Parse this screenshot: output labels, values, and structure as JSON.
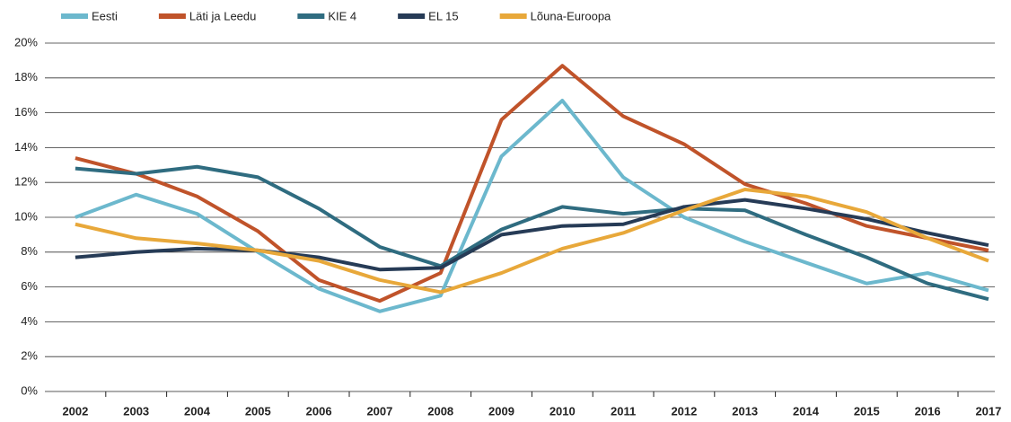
{
  "chart_data": {
    "type": "line",
    "categories": [
      "2002",
      "2003",
      "2004",
      "2005",
      "2006",
      "2007",
      "2008",
      "2009",
      "2010",
      "2011",
      "2012",
      "2013",
      "2014",
      "2015",
      "2016",
      "2017"
    ],
    "series": [
      {
        "name": "Eesti",
        "color": "#6cb8cd",
        "values": [
          10.0,
          11.3,
          10.2,
          8.0,
          5.9,
          4.6,
          5.5,
          13.5,
          16.7,
          12.3,
          10.0,
          8.6,
          7.4,
          6.2,
          6.8,
          5.8
        ]
      },
      {
        "name": "Läti ja Leedu",
        "color": "#c0532a",
        "values": [
          13.4,
          12.5,
          11.2,
          9.2,
          6.4,
          5.2,
          6.8,
          15.6,
          18.7,
          15.8,
          14.2,
          11.9,
          10.8,
          9.5,
          8.8,
          8.1
        ]
      },
      {
        "name": "KIE 4",
        "color": "#2f6c80",
        "values": [
          12.8,
          12.5,
          12.9,
          12.3,
          10.5,
          8.3,
          7.2,
          9.3,
          10.6,
          10.2,
          10.5,
          10.4,
          9.0,
          7.7,
          6.2,
          5.3
        ]
      },
      {
        "name": "EL 15",
        "color": "#263b56",
        "values": [
          7.7,
          8.0,
          8.2,
          8.1,
          7.7,
          7.0,
          7.1,
          9.0,
          9.5,
          9.6,
          10.6,
          11.0,
          10.5,
          9.9,
          9.1,
          8.4
        ]
      },
      {
        "name": "Lõuna-Euroopa",
        "color": "#e8a83a",
        "values": [
          9.6,
          8.8,
          8.5,
          8.1,
          7.5,
          6.4,
          5.7,
          6.8,
          8.2,
          9.1,
          10.4,
          11.6,
          11.2,
          10.3,
          8.8,
          7.5
        ]
      }
    ],
    "ylim": [
      0,
      20
    ],
    "yticks": [
      {
        "value": 0,
        "label": "0%"
      },
      {
        "value": 2,
        "label": "2%"
      },
      {
        "value": 4,
        "label": "4%"
      },
      {
        "value": 6,
        "label": "6%"
      },
      {
        "value": 8,
        "label": "8%"
      },
      {
        "value": 10,
        "label": "10%"
      },
      {
        "value": 12,
        "label": "12%"
      },
      {
        "value": 14,
        "label": "14%"
      },
      {
        "value": 16,
        "label": "16%"
      },
      {
        "value": 18,
        "label": "18%"
      },
      {
        "value": 20,
        "label": "20%"
      }
    ],
    "grid": true,
    "legend": "top"
  }
}
